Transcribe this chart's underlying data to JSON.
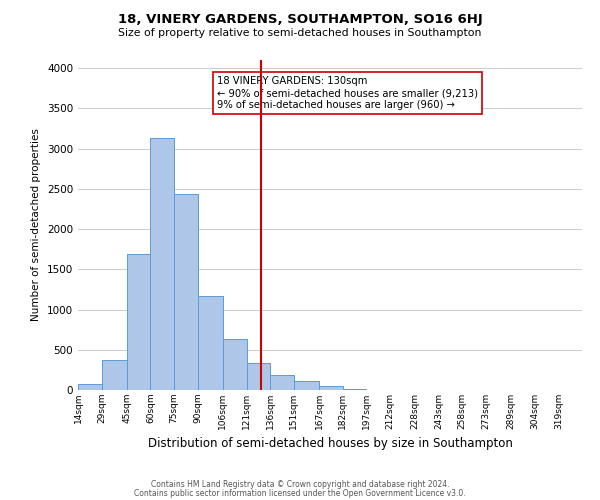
{
  "title": "18, VINERY GARDENS, SOUTHAMPTON, SO16 6HJ",
  "subtitle": "Size of property relative to semi-detached houses in Southampton",
  "xlabel": "Distribution of semi-detached houses by size in Southampton",
  "ylabel": "Number of semi-detached properties",
  "footnote1": "Contains HM Land Registry data © Crown copyright and database right 2024.",
  "footnote2": "Contains public sector information licensed under the Open Government Licence v3.0.",
  "bar_left_edges": [
    14,
    29,
    45,
    60,
    75,
    90,
    106,
    121,
    136,
    151,
    167,
    182,
    197,
    212,
    228,
    243,
    258,
    273,
    289,
    304
  ],
  "bar_heights": [
    75,
    370,
    1690,
    3130,
    2440,
    1170,
    630,
    330,
    190,
    110,
    55,
    15,
    5,
    2,
    1,
    0,
    0,
    0,
    0,
    0
  ],
  "bar_widths": [
    15,
    16,
    15,
    15,
    15,
    16,
    15,
    15,
    15,
    16,
    15,
    15,
    15,
    16,
    15,
    15,
    15,
    16,
    15,
    15
  ],
  "tick_labels": [
    "14sqm",
    "29sqm",
    "45sqm",
    "60sqm",
    "75sqm",
    "90sqm",
    "106sqm",
    "121sqm",
    "136sqm",
    "151sqm",
    "167sqm",
    "182sqm",
    "197sqm",
    "212sqm",
    "228sqm",
    "243sqm",
    "258sqm",
    "273sqm",
    "289sqm",
    "304sqm",
    "319sqm"
  ],
  "tick_positions": [
    14,
    29,
    45,
    60,
    75,
    90,
    106,
    121,
    136,
    151,
    167,
    182,
    197,
    212,
    228,
    243,
    258,
    273,
    289,
    304,
    319
  ],
  "bar_color": "#aec6e8",
  "bar_edge_color": "#5b9bd5",
  "vline_x": 130,
  "vline_color": "#cc0000",
  "annotation_title": "18 VINERY GARDENS: 130sqm",
  "annotation_line1": "← 90% of semi-detached houses are smaller (9,213)",
  "annotation_line2": "9% of semi-detached houses are larger (960) →",
  "ylim": [
    0,
    4100
  ],
  "xlim": [
    14,
    334
  ],
  "background_color": "#ffffff",
  "grid_color": "#cccccc"
}
